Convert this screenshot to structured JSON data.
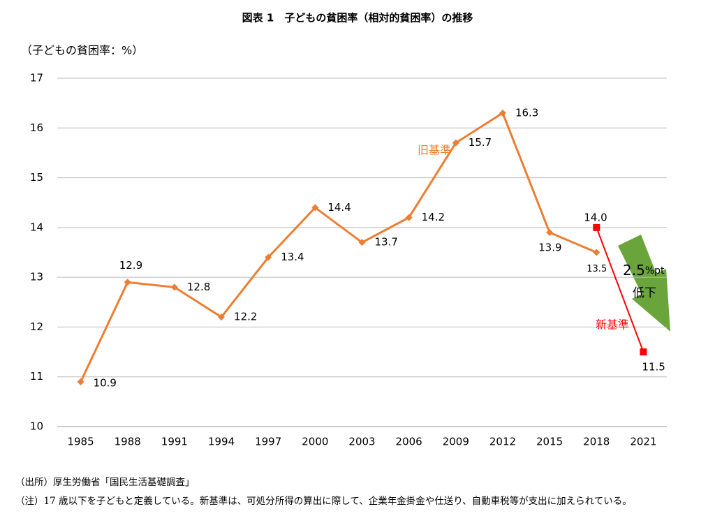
{
  "chart_data": {
    "type": "line",
    "title": "図表 1　子どもの貧困率（相対的貧困率）の推移",
    "y_label": "（子どもの貧困率：%）",
    "categories": [
      "1985",
      "1988",
      "1991",
      "1994",
      "1997",
      "2000",
      "2003",
      "2006",
      "2009",
      "2012",
      "2015",
      "2018",
      "2021"
    ],
    "series": [
      {
        "name": "旧基準",
        "color": "#ed7d31",
        "marker": "diamond",
        "values": [
          10.9,
          12.9,
          12.8,
          12.2,
          13.4,
          14.4,
          13.7,
          14.2,
          15.7,
          16.3,
          13.9,
          13.5,
          null
        ]
      },
      {
        "name": "新基準",
        "color": "#ff0000",
        "marker": "square",
        "values": [
          null,
          null,
          null,
          null,
          null,
          null,
          null,
          null,
          null,
          null,
          null,
          14,
          11.5
        ],
        "value_labels": [
          null,
          null,
          null,
          null,
          null,
          null,
          null,
          null,
          null,
          null,
          null,
          "14.0",
          "11.5"
        ]
      }
    ],
    "ylim": [
      10,
      17
    ],
    "yticks": [
      10,
      11,
      12,
      13,
      14,
      15,
      16,
      17
    ],
    "grid": true,
    "annotation": {
      "value": "2.5",
      "unit": "%pt",
      "label": "低下"
    },
    "notes": [
      "（出所）厚生労働省「国民生活基礎調査」",
      "（注）17 歳以下を子どもと定義している。新基準は、可処分所得の算出に際して、企業年金掛金や仕送り、自動車税等が支出に加えられている。"
    ]
  }
}
